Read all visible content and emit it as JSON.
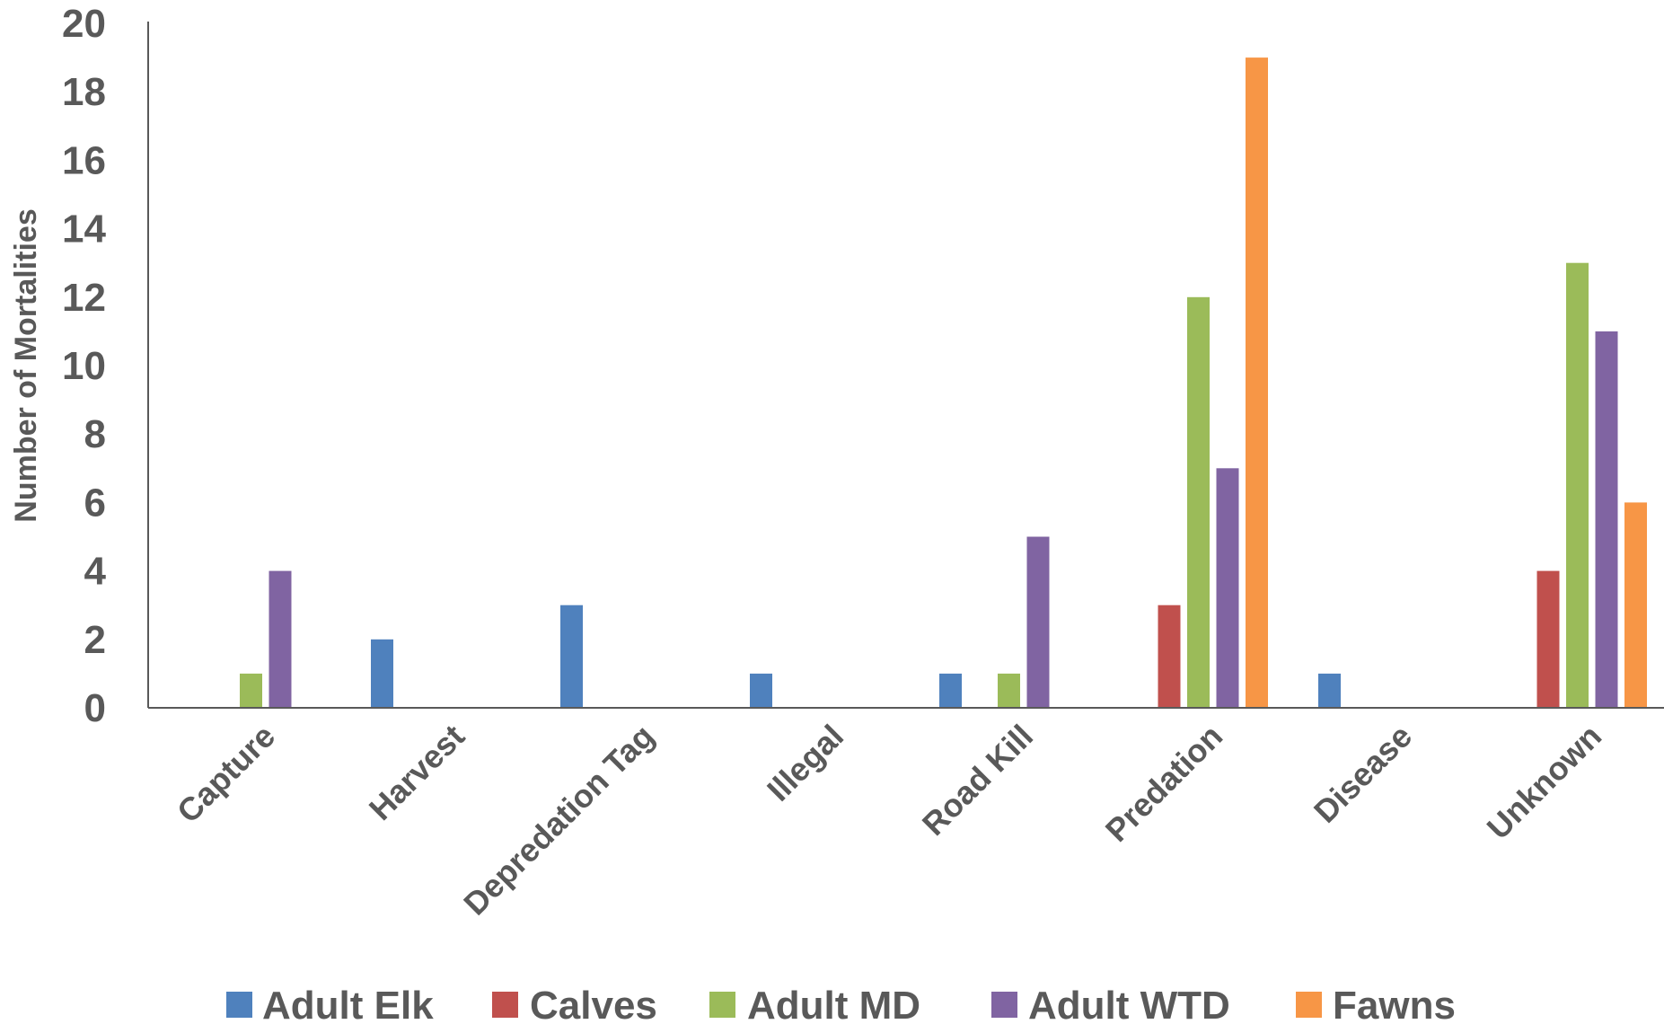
{
  "chart_data": {
    "type": "bar",
    "ylabel": "Number of Mortalities",
    "xlabel": "",
    "ylim": [
      0,
      20
    ],
    "yticks": [
      "0",
      "2",
      "4",
      "6",
      "8",
      "10",
      "12",
      "14",
      "16",
      "18",
      "20"
    ],
    "categories": [
      "Capture",
      "Harvest",
      "Depredation Tag",
      "Illegal",
      "Road Kill",
      "Predation",
      "Disease",
      "Unknown"
    ],
    "series": [
      {
        "name": "Adult Elk",
        "color": "#4f81bd",
        "values": [
          0,
          2,
          3,
          1,
          1,
          0,
          1,
          0
        ]
      },
      {
        "name": "Calves",
        "color": "#c0504d",
        "values": [
          0,
          0,
          0,
          0,
          0,
          3,
          0,
          4
        ]
      },
      {
        "name": "Adult MD",
        "color": "#9bbb59",
        "values": [
          1,
          0,
          0,
          0,
          1,
          12,
          0,
          13
        ]
      },
      {
        "name": "Adult WTD",
        "color": "#8064a2",
        "values": [
          4,
          0,
          0,
          0,
          5,
          7,
          0,
          11
        ]
      },
      {
        "name": "Fawns",
        "color": "#f79646",
        "values": [
          0,
          0,
          0,
          0,
          0,
          19,
          0,
          6
        ]
      }
    ],
    "grid": false,
    "legend_position": "bottom"
  }
}
